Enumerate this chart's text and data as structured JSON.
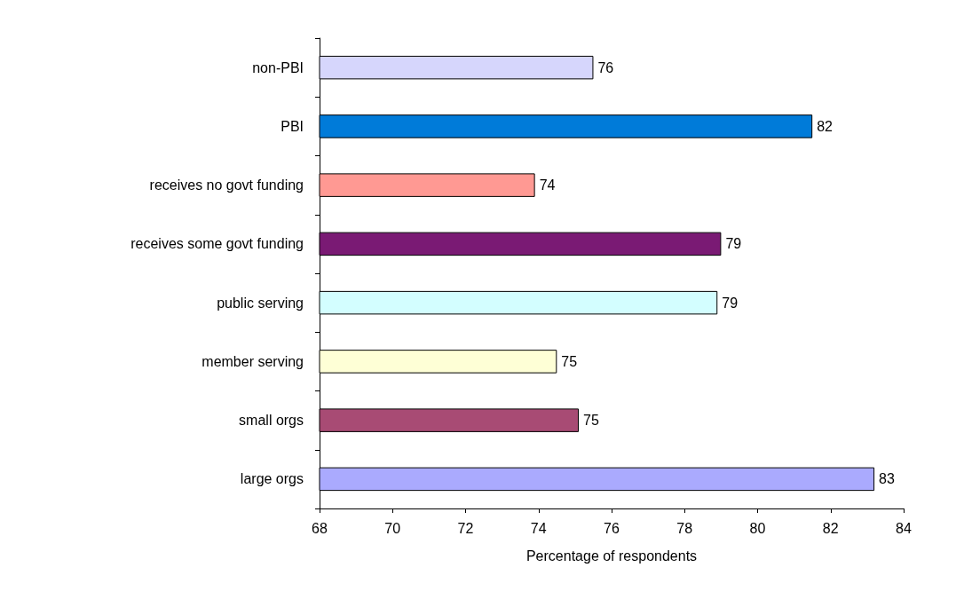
{
  "chart_data": {
    "type": "bar",
    "orientation": "horizontal",
    "xlabel": "Percentage of respondents",
    "categories": [
      "non-PBI",
      "PBI",
      "receives no govt funding",
      "receives some govt funding",
      "public serving",
      "member serving",
      "small orgs",
      "large orgs"
    ],
    "values": [
      75.5,
      81.5,
      73.9,
      79.0,
      78.9,
      74.5,
      75.1,
      83.2
    ],
    "value_labels": [
      "76",
      "82",
      "74",
      "79",
      "79",
      "75",
      "75",
      "83"
    ],
    "colors": [
      "#d6d6fc",
      "#007bd9",
      "#ff9993",
      "#7a1a74",
      "#d3feff",
      "#feffd6",
      "#a84b74",
      "#aaaafe"
    ],
    "xlim": [
      68,
      84
    ],
    "xticks": [
      68,
      70,
      72,
      74,
      76,
      78,
      80,
      82,
      84
    ],
    "grid": false
  }
}
